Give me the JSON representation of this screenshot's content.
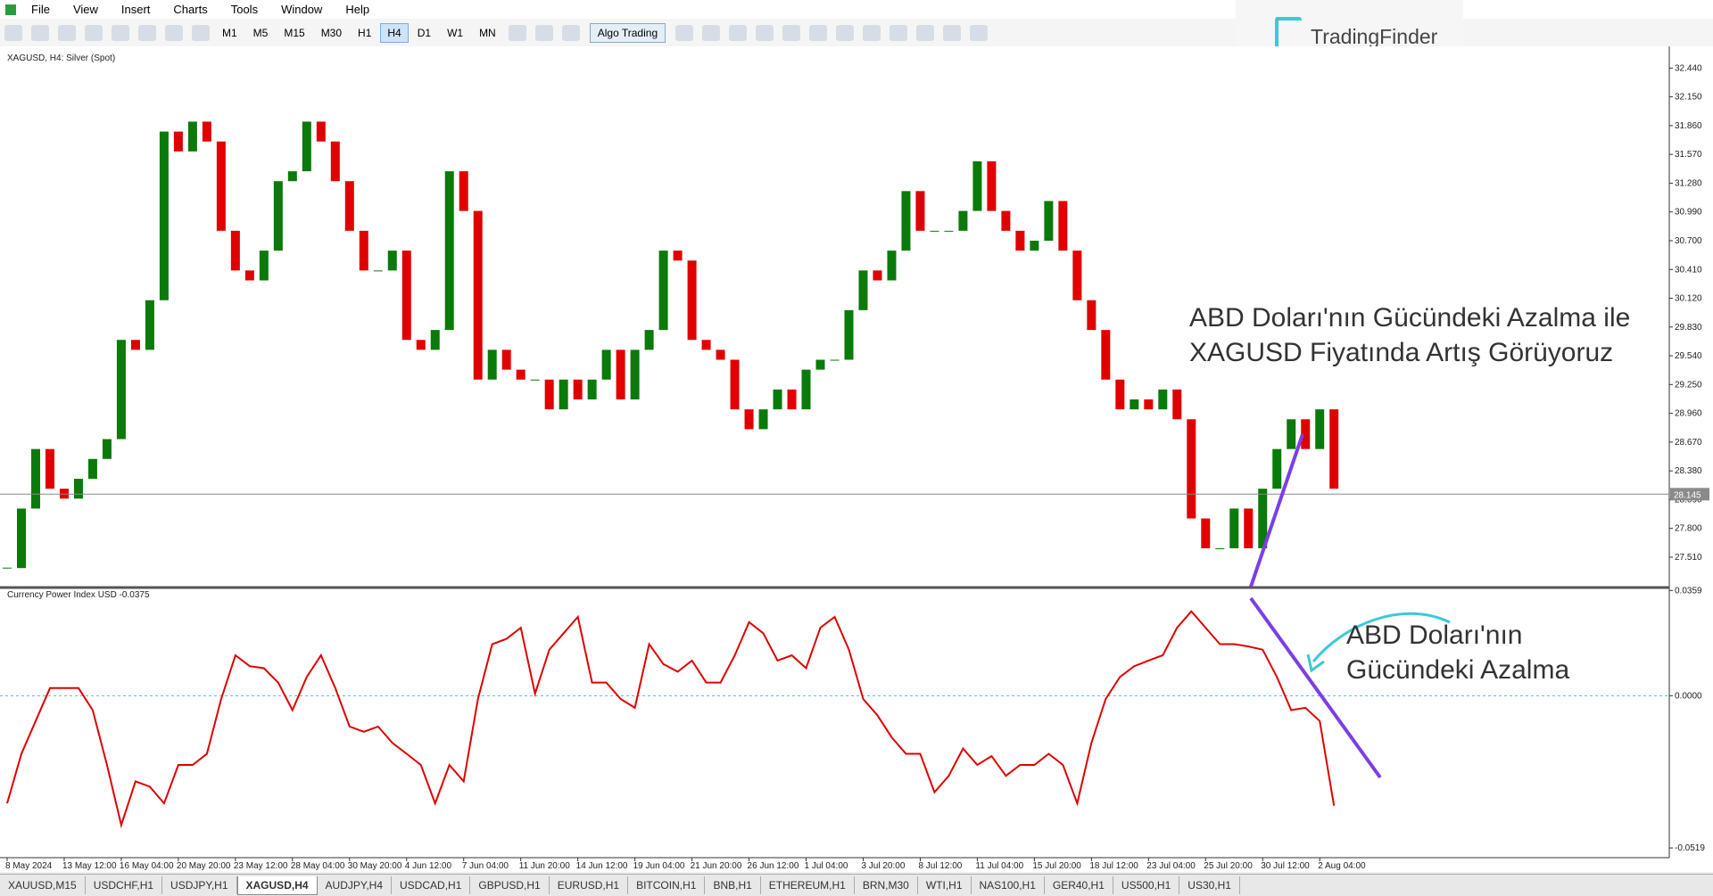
{
  "menu": [
    "File",
    "View",
    "Insert",
    "Charts",
    "Tools",
    "Window",
    "Help"
  ],
  "toolbar": {
    "timeframes": [
      "M1",
      "M5",
      "M15",
      "M30",
      "H1",
      "H4",
      "D1",
      "W1",
      "MN"
    ],
    "active_timeframe": 5,
    "algo": "Algo Trading"
  },
  "logo": "TradingFinder",
  "tabs": [
    "XAUUSD,M15",
    "USDCHF,H1",
    "USDJPY,H1",
    "XAGUSD,H4",
    "AUDJPY,H4",
    "USDCAD,H1",
    "GBPUSD,H1",
    "EURUSD,H1",
    "BITCOIN,H1",
    "BNB,H1",
    "ETHEREUM,H1",
    "BRN,M30",
    "WTI,H1",
    "NAS100,H1",
    "GER40,H1",
    "US500,H1",
    "US30,H1"
  ],
  "active_tab": 3,
  "annotations": {
    "price_note": [
      "ABD Doları'nın Gücündeki Azalma ile",
      "XAGUSD Fiyatında Artış Görüyoruz"
    ],
    "indicator_note": [
      "ABD Doları'nın",
      "Gücündeki Azalma"
    ]
  },
  "chart_data": [
    {
      "type": "candlestick",
      "title": "XAGUSD, H4:  Silver (Spot)",
      "up_color": "#0a7a0a",
      "down_color": "#e00000",
      "current_price": 28.145,
      "categories": [
        "8 May 2024",
        null,
        null,
        null,
        "13 May 12:00",
        null,
        null,
        null,
        "16 May 04:00",
        null,
        null,
        null,
        "20 May 20:00",
        null,
        null,
        null,
        "23 May 12:00",
        null,
        null,
        null,
        "28 May 04:00",
        null,
        null,
        null,
        "30 May 20:00",
        null,
        null,
        null,
        "4 Jun 12:00",
        null,
        null,
        null,
        "7 Jun 04:00",
        null,
        null,
        null,
        "11 Jun 20:00",
        null,
        null,
        null,
        "14 Jun 12:00",
        null,
        null,
        null,
        "19 Jun 04:00",
        null,
        null,
        null,
        "21 Jun 20:00",
        null,
        null,
        null,
        "26 Jun 12:00",
        null,
        null,
        null,
        "1 Jul 04:00",
        null,
        null,
        null,
        "3 Jul 20:00",
        null,
        null,
        null,
        "8 Jul 12:00",
        null,
        null,
        null,
        "11 Jul 04:00",
        null,
        null,
        null,
        "15 Jul 20:00",
        null,
        null,
        null,
        "18 Jul 12:00",
        null,
        null,
        null,
        "23 Jul 04:00",
        null,
        null,
        null,
        "25 Jul 20:00",
        null,
        null,
        null,
        "30 Jul 12:00",
        null,
        null,
        null,
        "2 Aug 04:00",
        null,
        null,
        null,
        null,
        null,
        null,
        null,
        null,
        null,
        null,
        null,
        null,
        null,
        null,
        null,
        null,
        null,
        null,
        null,
        null,
        null,
        null,
        null,
        null
      ],
      "values": [
        27.4,
        28.0,
        28.6,
        28.2,
        28.1,
        28.3,
        28.5,
        28.7,
        29.7,
        29.6,
        30.1,
        31.8,
        31.6,
        31.9,
        31.7,
        30.8,
        30.4,
        30.3,
        30.6,
        31.3,
        31.4,
        31.9,
        31.7,
        31.3,
        30.8,
        30.4,
        30.4,
        30.6,
        29.7,
        29.6,
        29.8,
        31.4,
        31.0,
        29.3,
        29.6,
        29.4,
        29.3,
        29.3,
        29.0,
        29.3,
        29.1,
        29.3,
        29.6,
        29.1,
        29.6,
        29.8,
        30.6,
        30.5,
        29.7,
        29.6,
        29.5,
        29.0,
        28.8,
        29.0,
        29.2,
        29.0,
        29.4,
        29.5,
        29.5,
        30.0,
        30.4,
        30.3,
        30.6,
        31.2,
        30.8,
        30.8,
        30.8,
        31.0,
        31.5,
        31.0,
        30.8,
        30.6,
        30.7,
        31.1,
        30.6,
        30.1,
        29.8,
        29.3,
        29.0,
        29.1,
        29.0,
        29.2,
        28.9,
        27.9,
        27.6,
        27.6,
        28.0,
        27.6,
        28.2,
        28.6,
        28.9,
        28.6,
        29.0,
        28.2,
        null,
        null,
        null,
        null,
        null,
        null,
        null,
        null,
        null,
        null,
        null,
        null,
        null,
        null,
        null,
        null,
        null,
        null,
        null,
        null,
        null,
        null,
        null
      ],
      "ylim": [
        27.213,
        32.605
      ],
      "yticks": [
        {
          "value": 32.44,
          "label": "32.440"
        },
        {
          "value": 32.15,
          "label": "32.150"
        },
        {
          "value": 31.86,
          "label": "31.860"
        },
        {
          "value": 31.57,
          "label": "31.570"
        },
        {
          "value": 31.28,
          "label": "31.280"
        },
        {
          "value": 30.99,
          "label": "30.990"
        },
        {
          "value": 30.7,
          "label": "30.700"
        },
        {
          "value": 30.41,
          "label": "30.410"
        },
        {
          "value": 30.12,
          "label": "30.120"
        },
        {
          "value": 29.83,
          "label": "29.830"
        },
        {
          "value": 29.54,
          "label": "29.540"
        },
        {
          "value": 29.25,
          "label": "29.250"
        },
        {
          "value": 28.96,
          "label": "28.960"
        },
        {
          "value": 28.67,
          "label": "28.670"
        },
        {
          "value": 28.38,
          "label": "28.380"
        },
        {
          "value": 28.09,
          "label": "28.090"
        },
        {
          "value": 27.8,
          "label": "27.800"
        },
        {
          "value": 27.51,
          "label": "27.510"
        }
      ]
    },
    {
      "type": "line",
      "title": "Currency Power Index USD -0.0375",
      "color": "#e00000",
      "level_color": "#38c8e0",
      "values": [
        -0.0367,
        -0.0198,
        -0.0086,
        0.0026,
        0.0026,
        0.0026,
        -0.0049,
        -0.0236,
        -0.0441,
        -0.0292,
        -0.031,
        -0.0367,
        -0.0236,
        -0.0236,
        -0.0198,
        -0.0011,
        0.0138,
        0.0101,
        0.0094,
        0.0045,
        -0.0049,
        0.0064,
        0.0138,
        0.0026,
        -0.0105,
        -0.0123,
        -0.0105,
        -0.0161,
        -0.0198,
        -0.0236,
        -0.0367,
        -0.0236,
        -0.0292,
        -0.0011,
        0.0176,
        0.0194,
        0.0232,
        0.0007,
        0.0157,
        0.0213,
        0.0269,
        0.0045,
        0.0045,
        -0.0011,
        -0.0041,
        0.0176,
        0.0108,
        0.0082,
        0.012,
        0.0045,
        0.0045,
        0.0138,
        0.0251,
        0.0213,
        0.012,
        0.0138,
        0.0094,
        0.0232,
        0.0269,
        0.0157,
        -0.0011,
        -0.0067,
        -0.0142,
        -0.0198,
        -0.0198,
        -0.0329,
        -0.0273,
        -0.018,
        -0.0236,
        -0.0206,
        -0.0273,
        -0.0236,
        -0.0236,
        -0.0198,
        -0.0236,
        -0.0367,
        -0.0161,
        -0.0011,
        0.0064,
        0.0101,
        0.012,
        0.0138,
        0.0232,
        0.0288,
        0.0232,
        0.0176,
        0.0176,
        0.0168,
        0.0157,
        0.0064,
        -0.0049,
        -0.0041,
        -0.0086,
        -0.0375,
        null,
        null,
        null,
        null,
        null,
        null,
        null,
        null,
        null,
        null,
        null,
        null,
        null,
        null,
        null,
        null,
        null,
        null,
        null,
        null,
        null,
        null,
        null
      ],
      "ylim": [
        -0.054,
        0.0366
      ],
      "yticks": [
        0.0359,
        {
          "value": 0,
          "label": "0.0000"
        },
        -0.0519
      ]
    }
  ]
}
